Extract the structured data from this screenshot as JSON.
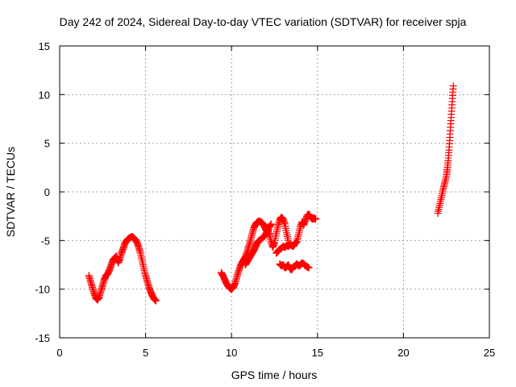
{
  "chart_data": {
    "type": "scatter",
    "title": "Day 242 of 2024, Sidereal Day-to-day VTEC variation (SDTVAR) for receiver spja",
    "xlabel": "GPS time / hours",
    "ylabel": "SDTVAR / TECUs",
    "xlim": [
      0,
      25
    ],
    "ylim": [
      -15,
      15
    ],
    "xticks": [
      0,
      5,
      10,
      15,
      20,
      25
    ],
    "yticks": [
      -15,
      -10,
      -5,
      0,
      5,
      10,
      15
    ],
    "grid": true,
    "marker": "+",
    "color": "#ff0000",
    "series": [
      {
        "name": "SDTVAR",
        "segments": [
          {
            "x": [
              1.7,
              1.8,
              1.9,
              2.0,
              2.1,
              2.2,
              2.3,
              2.4,
              2.5,
              2.6,
              2.7,
              2.8,
              2.9,
              3.0,
              3.1,
              3.2,
              3.3,
              3.4,
              3.5,
              3.6,
              3.7,
              3.8,
              3.9,
              4.0,
              4.1,
              4.2,
              4.3,
              4.4,
              4.5,
              4.6,
              4.7,
              4.8,
              4.9,
              5.0,
              5.1,
              5.2,
              5.3,
              5.4,
              5.5,
              5.6
            ],
            "y": [
              -8.6,
              -9.2,
              -9.8,
              -10.4,
              -10.9,
              -11.1,
              -10.8,
              -10.2,
              -9.6,
              -9.0,
              -8.6,
              -8.4,
              -8.0,
              -7.5,
              -7.0,
              -6.8,
              -6.6,
              -7.3,
              -6.9,
              -6.3,
              -5.8,
              -5.3,
              -5.0,
              -4.8,
              -4.7,
              -4.6,
              -4.7,
              -4.9,
              -5.2,
              -5.7,
              -6.3,
              -7.1,
              -7.9,
              -8.6,
              -9.2,
              -9.8,
              -10.3,
              -10.7,
              -11.0,
              -11.2
            ]
          },
          {
            "x": [
              9.4,
              9.5,
              9.6,
              9.7,
              9.8,
              9.9,
              10.0,
              10.1,
              10.2,
              10.3,
              10.4,
              10.5,
              10.6,
              10.7,
              10.8,
              10.9,
              11.0,
              11.1,
              11.2,
              11.3,
              11.4,
              11.5,
              11.6,
              11.7,
              11.8,
              11.9,
              12.0,
              12.1,
              12.2,
              12.3
            ],
            "y": [
              -8.3,
              -8.6,
              -9.0,
              -9.4,
              -9.7,
              -9.9,
              -10.0,
              -9.8,
              -9.4,
              -8.8,
              -8.2,
              -7.7,
              -7.3,
              -7.0,
              -6.7,
              -6.2,
              -5.6,
              -5.0,
              -4.3,
              -3.7,
              -3.3,
              -3.1,
              -3.0,
              -3.1,
              -3.2,
              -3.5,
              -3.9,
              -4.1,
              -3.6,
              -3.3
            ]
          },
          {
            "x": [
              10.8,
              10.9,
              11.0,
              11.1,
              11.2,
              11.3,
              11.4,
              11.5,
              11.6,
              11.7,
              11.8,
              11.9,
              12.0,
              12.1,
              12.2,
              12.3,
              12.4,
              12.5,
              12.6,
              12.7,
              12.8,
              12.9,
              13.0,
              13.1,
              13.2,
              13.3
            ],
            "y": [
              -7.5,
              -7.2,
              -6.9,
              -6.6,
              -6.3,
              -6.0,
              -5.6,
              -5.2,
              -5.0,
              -4.9,
              -4.7,
              -4.6,
              -4.3,
              -3.9,
              -4.4,
              -5.1,
              -5.7,
              -5.2,
              -4.3,
              -3.5,
              -2.9,
              -2.6,
              -2.8,
              -3.3,
              -4.2,
              -5.0
            ]
          },
          {
            "x": [
              12.6,
              12.7,
              12.8,
              12.9,
              13.0,
              13.1,
              13.2,
              13.3,
              13.4,
              13.5,
              13.6,
              13.7,
              13.8,
              13.9,
              14.0,
              14.1,
              14.2,
              14.3,
              14.4,
              14.5,
              14.6,
              14.7,
              14.8,
              14.9
            ],
            "y": [
              -6.3,
              -6.1,
              -5.9,
              -5.8,
              -5.6,
              -5.7,
              -5.5,
              -5.6,
              -5.4,
              -5.5,
              -5.6,
              -5.3,
              -5.1,
              -4.4,
              -3.6,
              -3.1,
              -3.4,
              -2.9,
              -2.4,
              -2.3,
              -2.6,
              -2.8,
              -2.7,
              -2.8
            ]
          },
          {
            "x": [
              12.8,
              12.9,
              13.0,
              13.1,
              13.2,
              13.3,
              13.4,
              13.5,
              13.6,
              13.7,
              13.8,
              13.9,
              14.0,
              14.1,
              14.2,
              14.3,
              14.4,
              14.5
            ],
            "y": [
              -7.4,
              -7.6,
              -7.5,
              -7.8,
              -7.7,
              -7.5,
              -7.9,
              -8.0,
              -7.7,
              -7.6,
              -7.4,
              -7.6,
              -7.5,
              -7.3,
              -7.4,
              -7.6,
              -7.7,
              -7.8
            ]
          },
          {
            "x": [
              22.0,
              22.1,
              22.2,
              22.3,
              22.4,
              22.5,
              22.55,
              22.6,
              22.65,
              22.7,
              22.75,
              22.8,
              22.85,
              22.9
            ],
            "y": [
              -2.2,
              -1.4,
              -0.6,
              0.2,
              0.9,
              1.6,
              2.3,
              3.2,
              4.3,
              5.6,
              7.0,
              8.3,
              9.6,
              10.9
            ]
          }
        ]
      }
    ]
  }
}
